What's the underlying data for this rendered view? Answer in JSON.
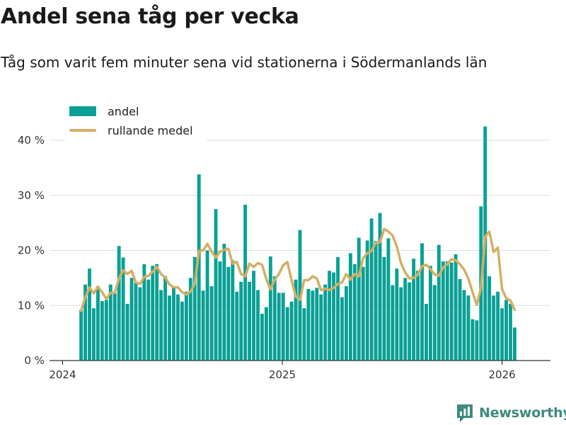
{
  "title": "Andel sena tåg per vecka",
  "subtitle": "Tåg som varit fem minuter sena vid stationerna i Södermanlands län",
  "brand": {
    "name": "Newsworthy",
    "icon": "newsworthy-logo-icon",
    "color": "#3d8b7d"
  },
  "colors": {
    "bars": "#0aa095",
    "line": "#d4af64",
    "grid": "#dddddd",
    "axis": "#333333"
  },
  "chart_data": {
    "type": "bar",
    "title": "Andel sena tåg per vecka",
    "xlabel": "",
    "ylabel": "",
    "ylim": [
      0,
      45
    ],
    "y_ticks": [
      {
        "value": 0,
        "label": "0 %"
      },
      {
        "value": 10,
        "label": "10 %"
      },
      {
        "value": 20,
        "label": "20 %"
      },
      {
        "value": 30,
        "label": "30 %"
      },
      {
        "value": 40,
        "label": "40 %"
      }
    ],
    "x_ticks": [
      {
        "week_index": -4.4,
        "label": "2024"
      },
      {
        "week_index": 47.8,
        "label": "2025"
      },
      {
        "week_index": 100.0,
        "label": "2026"
      }
    ],
    "x_range": [
      -7.5,
      111.5
    ],
    "legend": {
      "position": "top-left",
      "entries": [
        "andel",
        "rullande medel"
      ]
    },
    "series": [
      {
        "name": "andel",
        "type": "bar",
        "values": [
          9.2,
          13.8,
          16.7,
          9.5,
          13.5,
          10.8,
          11.0,
          13.8,
          12.2,
          20.8,
          18.7,
          10.3,
          15.0,
          14.2,
          13.3,
          17.5,
          14.7,
          17.2,
          17.5,
          12.8,
          15.3,
          11.8,
          13.3,
          12.0,
          10.7,
          12.5,
          15.0,
          18.8,
          33.8,
          12.7,
          20.0,
          13.5,
          27.5,
          18.0,
          21.2,
          17.0,
          18.2,
          12.5,
          14.3,
          28.3,
          14.3,
          16.3,
          12.8,
          8.5,
          9.7,
          18.9,
          15.3,
          12.3,
          12.3,
          9.7,
          10.7,
          14.7,
          23.7,
          9.5,
          13.0,
          12.7,
          13.2,
          12.0,
          13.8,
          16.3,
          16.0,
          18.8,
          11.5,
          13.5,
          19.5,
          17.5,
          22.3,
          17.0,
          21.8,
          25.8,
          21.7,
          26.8,
          18.8,
          22.2,
          13.7,
          16.7,
          13.3,
          15.0,
          14.2,
          18.5,
          16.3,
          21.3,
          10.3,
          17.2,
          13.7,
          21.0,
          18.0,
          18.0,
          17.8,
          19.3,
          14.8,
          12.8,
          11.8,
          7.5,
          7.3,
          28.0,
          42.5,
          15.3,
          11.8,
          12.5,
          9.5,
          11.0,
          10.3,
          6.0
        ]
      },
      {
        "name": "rullande medel",
        "type": "line",
        "values": [
          9.0,
          11.5,
          13.3,
          12.2,
          13.4,
          12.4,
          11.2,
          12.3,
          12.3,
          14.9,
          16.4,
          15.7,
          16.3,
          14.2,
          13.9,
          15.2,
          15.4,
          16.1,
          17.0,
          15.7,
          15.1,
          13.8,
          13.3,
          13.3,
          12.4,
          12.0,
          12.5,
          13.9,
          19.9,
          20.0,
          21.2,
          19.8,
          18.7,
          19.8,
          20.1,
          20.3,
          17.6,
          17.9,
          15.7,
          15.3,
          17.6,
          17.0,
          17.7,
          17.4,
          14.8,
          12.9,
          14.7,
          15.7,
          17.3,
          17.9,
          14.6,
          11.6,
          11.0,
          14.6,
          14.6,
          15.3,
          14.9,
          12.8,
          13.0,
          12.8,
          13.2,
          13.9,
          14.2,
          15.7,
          14.7,
          15.7,
          15.3,
          18.6,
          19.5,
          19.9,
          21.4,
          21.5,
          23.9,
          23.4,
          22.7,
          20.7,
          17.7,
          16.0,
          14.9,
          15.0,
          15.6,
          17.1,
          17.4,
          16.6,
          15.6,
          15.4,
          16.9,
          17.5,
          18.4,
          18.2,
          17.5,
          16.5,
          14.9,
          12.4,
          10.1,
          13.2,
          22.5,
          23.4,
          19.7,
          20.5,
          13.0,
          11.3,
          10.9,
          9.2
        ]
      }
    ]
  }
}
